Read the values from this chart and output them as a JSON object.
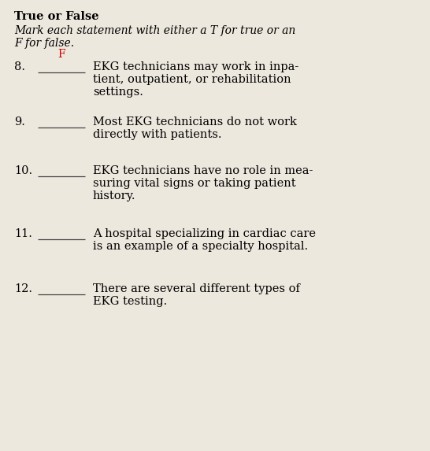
{
  "background_color": "#ede8de",
  "title": "True or False",
  "subtitle_line1": "Mark each statement with either a T for true or an",
  "subtitle_line2": "F for false.",
  "items": [
    {
      "number": "8.",
      "answer": "F",
      "answer_color": "#cc0000",
      "text_lines": [
        "EKG technicians may work in inpa-",
        "tient, outpatient, or rehabilitation",
        "settings."
      ]
    },
    {
      "number": "9.",
      "answer": "",
      "answer_color": "#000000",
      "text_lines": [
        "Most EKG technicians do not work",
        "directly with patients."
      ]
    },
    {
      "number": "10.",
      "answer": "",
      "answer_color": "#000000",
      "text_lines": [
        "EKG technicians have no role in mea-",
        "suring vital signs or taking patient",
        "history."
      ]
    },
    {
      "number": "11.",
      "answer": "",
      "answer_color": "#000000",
      "text_lines": [
        "A hospital specializing in cardiac care",
        "is an example of a specialty hospital."
      ]
    },
    {
      "number": "12.",
      "answer": "",
      "answer_color": "#000000",
      "text_lines": [
        "There are several different types of",
        "EKG testing."
      ]
    }
  ],
  "title_fontsize": 10.5,
  "subtitle_fontsize": 10.0,
  "number_fontsize": 10.5,
  "text_fontsize": 10.5,
  "answer_fontsize": 10.0
}
